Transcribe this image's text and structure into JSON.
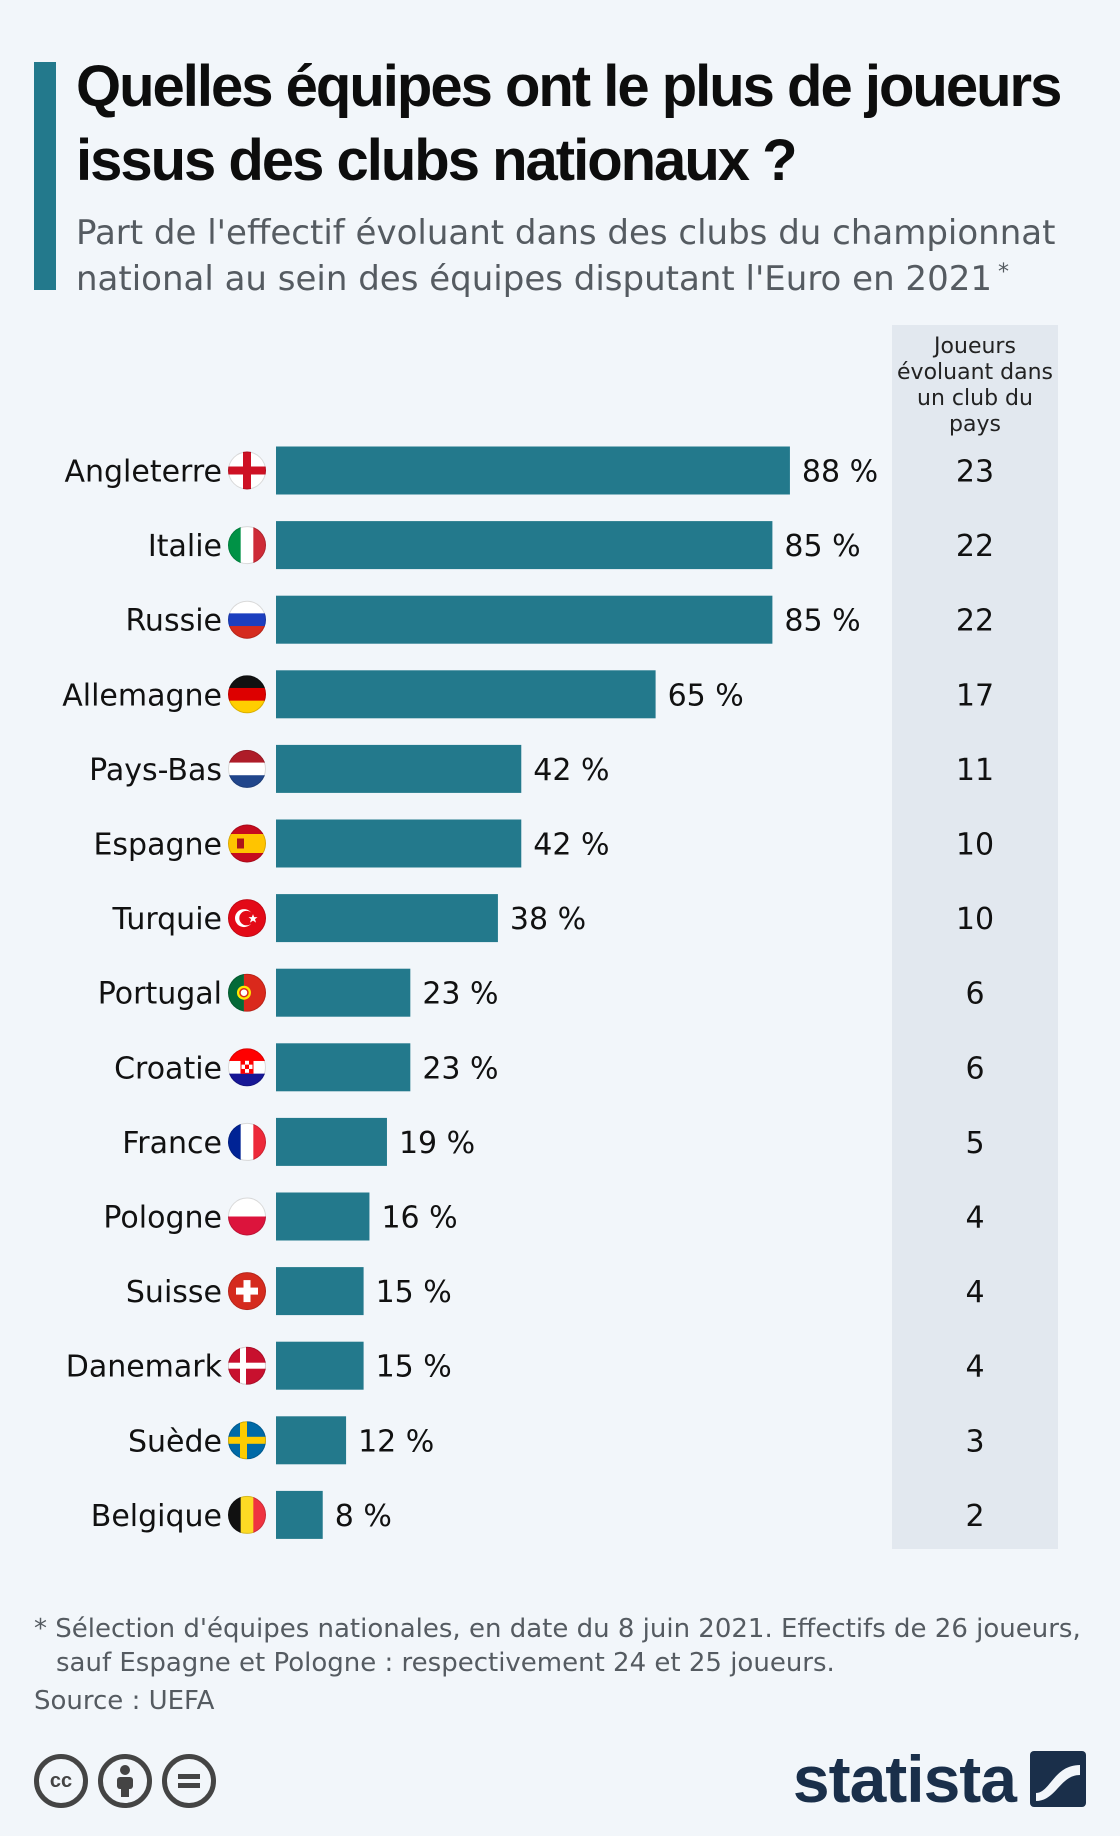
{
  "header": {
    "title": "Quelles équipes ont le plus de joueurs issus des clubs nationaux ?",
    "subtitle": "Part de l'effectif évoluant dans des clubs du championnat national au sein des équipes disputant l'Euro en 2021",
    "subtitle_marker": "*"
  },
  "table": {
    "column_header": "Joueurs évoluant dans un club du pays"
  },
  "colors": {
    "bar": "#23798c",
    "background": "#f2f6fa",
    "panel": "#e2e8ef"
  },
  "chart_data": {
    "type": "bar",
    "orientation": "horizontal",
    "categories": [
      "Angleterre",
      "Italie",
      "Russie",
      "Allemagne",
      "Pays-Bas",
      "Espagne",
      "Turquie",
      "Portugal",
      "Croatie",
      "France",
      "Pologne",
      "Suisse",
      "Danemark",
      "Suède",
      "Belgique"
    ],
    "values": [
      88,
      85,
      85,
      65,
      42,
      42,
      38,
      23,
      23,
      19,
      16,
      15,
      15,
      12,
      8
    ],
    "value_labels": [
      "88 %",
      "85 %",
      "85 %",
      "65 %",
      "42 %",
      "42 %",
      "38 %",
      "23 %",
      "23 %",
      "19 %",
      "16 %",
      "15 %",
      "15 %",
      "12 %",
      "8 %"
    ],
    "players": [
      "23",
      "22",
      "22",
      "17",
      "11",
      "10",
      "10",
      "6",
      "6",
      "5",
      "4",
      "4",
      "4",
      "3",
      "2"
    ],
    "flags": [
      "england-flag",
      "italy-flag",
      "russia-flag",
      "germany-flag",
      "netherlands-flag",
      "spain-flag",
      "turkey-flag",
      "portugal-flag",
      "croatia-flag",
      "france-flag",
      "poland-flag",
      "switzerland-flag",
      "denmark-flag",
      "sweden-flag",
      "belgium-flag"
    ],
    "xlim": [
      0,
      100
    ],
    "grid": false,
    "legend": "none"
  },
  "footer": {
    "footnote_line1": "* Sélection d'équipes nationales, en date du 8 juin 2021. Effectifs de 26 joueurs,",
    "footnote_line2": "sauf Espagne et Pologne : respectivement 24 et 25 joueurs.",
    "source": "Source : UEFA",
    "logo": "statista",
    "license_icons": [
      "cc-icon",
      "by-icon",
      "nd-icon"
    ]
  }
}
